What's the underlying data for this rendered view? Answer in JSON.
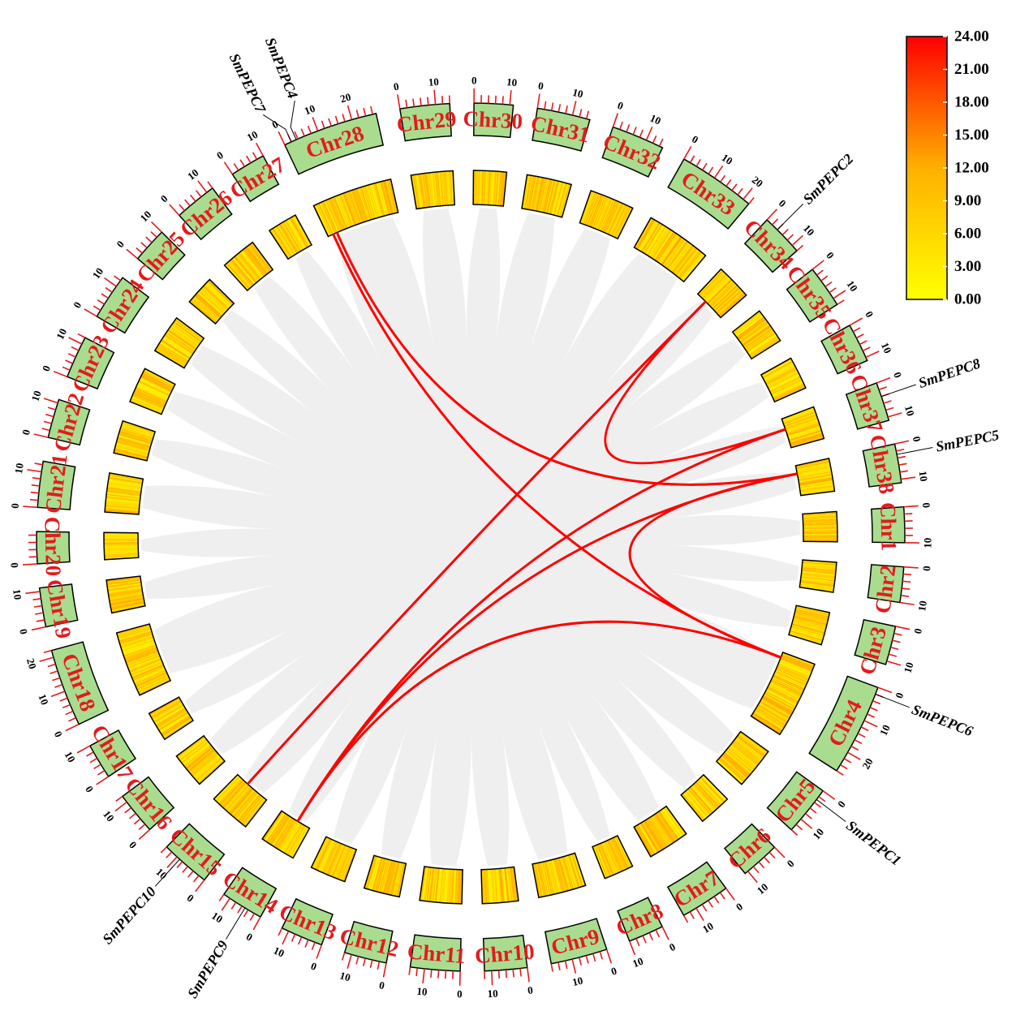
{
  "legend": {
    "ticks": [
      "24.00",
      "21.00",
      "18.00",
      "15.00",
      "12.00",
      "9.00",
      "6.00",
      "3.00",
      "0.00"
    ],
    "range": [
      0,
      24
    ],
    "colors": {
      "low": "#ffff00",
      "mid": "#ffb000",
      "high": "#ff0000"
    }
  },
  "colors": {
    "chr_label": "#e41a1c",
    "chr_fill": "#a9dc8e",
    "tick": "#e41a1c",
    "link": "#ff0000",
    "ribbon": "#efefef"
  },
  "chromosomes": [
    {
      "name": "Chr1",
      "length": 10
    },
    {
      "name": "Chr2",
      "length": 10
    },
    {
      "name": "Chr3",
      "length": 11
    },
    {
      "name": "Chr4",
      "length": 26
    },
    {
      "name": "Chr5",
      "length": 14
    },
    {
      "name": "Chr6",
      "length": 11
    },
    {
      "name": "Chr7",
      "length": 14
    },
    {
      "name": "Chr8",
      "length": 10
    },
    {
      "name": "Chr9",
      "length": 16
    },
    {
      "name": "Chr10",
      "length": 12
    },
    {
      "name": "Chr11",
      "length": 14
    },
    {
      "name": "Chr12",
      "length": 12
    },
    {
      "name": "Chr13",
      "length": 12
    },
    {
      "name": "Chr14",
      "length": 12
    },
    {
      "name": "Chr15",
      "length": 14
    },
    {
      "name": "Chr16",
      "length": 12
    },
    {
      "name": "Chr17",
      "length": 10
    },
    {
      "name": "Chr18",
      "length": 22
    },
    {
      "name": "Chr19",
      "length": 11
    },
    {
      "name": "Chr20",
      "length": 9
    },
    {
      "name": "Chr21",
      "length": 13
    },
    {
      "name": "Chr22",
      "length": 11
    },
    {
      "name": "Chr23",
      "length": 12
    },
    {
      "name": "Chr24",
      "length": 13
    },
    {
      "name": "Chr25",
      "length": 10
    },
    {
      "name": "Chr26",
      "length": 12
    },
    {
      "name": "Chr27",
      "length": 10
    },
    {
      "name": "Chr28",
      "length": 27
    },
    {
      "name": "Chr29",
      "length": 14
    },
    {
      "name": "Chr30",
      "length": 11
    },
    {
      "name": "Chr31",
      "length": 15
    },
    {
      "name": "Chr32",
      "length": 15
    },
    {
      "name": "Chr33",
      "length": 22
    },
    {
      "name": "Chr34",
      "length": 12
    },
    {
      "name": "Chr35",
      "length": 12
    },
    {
      "name": "Chr36",
      "length": 11
    },
    {
      "name": "Chr37",
      "length": 11
    },
    {
      "name": "Chr38",
      "length": 11
    }
  ],
  "genes": [
    {
      "name": "SmPEPC1",
      "chr": "Chr5",
      "pos": 3
    },
    {
      "name": "SmPEPC2",
      "chr": "Chr34",
      "pos": 4
    },
    {
      "name": "SmPEPC4",
      "chr": "Chr28",
      "pos": 3.5
    },
    {
      "name": "SmPEPC5",
      "chr": "Chr38",
      "pos": 3
    },
    {
      "name": "SmPEPC6",
      "chr": "Chr4",
      "pos": 2
    },
    {
      "name": "SmPEPC7",
      "chr": "Chr28",
      "pos": 2
    },
    {
      "name": "SmPEPC8",
      "chr": "Chr37",
      "pos": 4
    },
    {
      "name": "SmPEPC9",
      "chr": "Chr14",
      "pos": 5
    },
    {
      "name": "SmPEPC10",
      "chr": "Chr15",
      "pos": 9
    }
  ],
  "links": [
    [
      "SmPEPC4",
      "SmPEPC5"
    ],
    [
      "SmPEPC7",
      "SmPEPC6"
    ],
    [
      "SmPEPC2",
      "SmPEPC8"
    ],
    [
      "SmPEPC2",
      "SmPEPC10"
    ],
    [
      "SmPEPC8",
      "SmPEPC9"
    ],
    [
      "SmPEPC5",
      "SmPEPC9"
    ],
    [
      "SmPEPC5",
      "SmPEPC6"
    ],
    [
      "SmPEPC6",
      "SmPEPC9"
    ]
  ]
}
